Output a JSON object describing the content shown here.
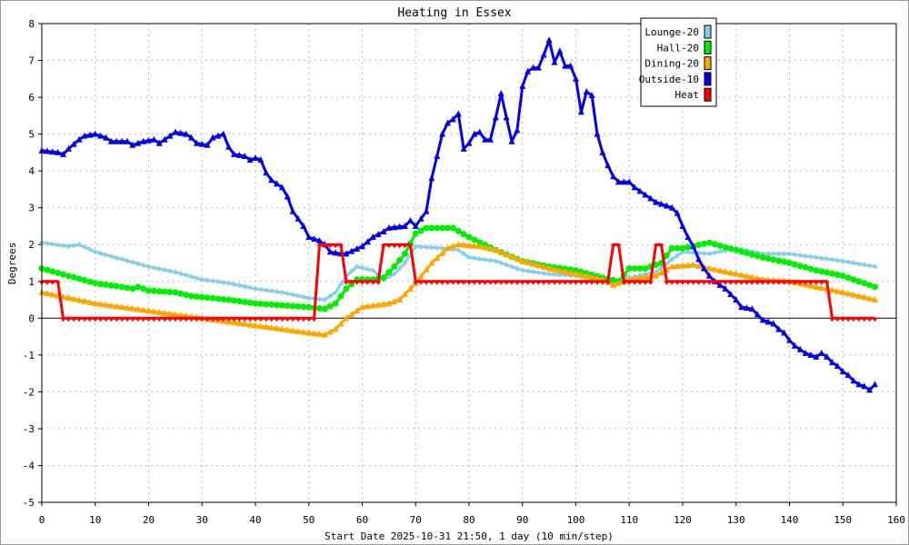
{
  "chart_data": {
    "type": "line",
    "title": "Heating in Essex",
    "xlabel": "Start Date 2025-10-31 21:50, 1 day (10 min/step)",
    "ylabel": "Degrees",
    "xlim": [
      0,
      160
    ],
    "ylim": [
      -5,
      8
    ],
    "xticks": [
      0,
      10,
      20,
      30,
      40,
      50,
      60,
      70,
      80,
      90,
      100,
      110,
      120,
      130,
      140,
      150,
      160
    ],
    "yticks": [
      -5,
      -4,
      -3,
      -2,
      -1,
      0,
      1,
      2,
      3,
      4,
      5,
      6,
      7,
      8
    ],
    "grid": true,
    "legend_position": "top-right",
    "series": [
      {
        "name": "Lounge-20",
        "color": "#87ceeb",
        "marker": "diamond",
        "x": [
          0,
          5,
          7,
          10,
          15,
          20,
          25,
          30,
          35,
          40,
          45,
          50,
          53,
          55,
          57,
          59,
          62,
          64,
          66,
          68,
          70,
          75,
          78,
          80,
          85,
          90,
          95,
          100,
          105,
          108,
          110,
          115,
          118,
          120,
          125,
          130,
          135,
          140,
          145,
          150,
          156
        ],
        "y": [
          2.05,
          1.95,
          2.0,
          1.8,
          1.6,
          1.4,
          1.25,
          1.05,
          0.95,
          0.8,
          0.7,
          0.55,
          0.5,
          0.7,
          1.15,
          1.4,
          1.3,
          1.05,
          1.2,
          1.5,
          1.95,
          1.9,
          1.85,
          1.65,
          1.55,
          1.3,
          1.2,
          1.15,
          1.05,
          1.0,
          1.1,
          1.25,
          1.6,
          1.8,
          1.75,
          1.9,
          1.75,
          1.75,
          1.65,
          1.55,
          1.4
        ]
      },
      {
        "name": "Hall-20",
        "color": "#00ee00",
        "marker": "circle",
        "x": [
          0,
          5,
          10,
          15,
          17,
          18,
          20,
          25,
          28,
          35,
          40,
          45,
          50,
          53,
          55,
          57,
          59,
          62,
          64,
          66,
          68,
          70,
          72,
          77,
          80,
          85,
          90,
          95,
          100,
          105,
          108,
          110,
          113,
          116,
          118,
          120,
          125,
          130,
          135,
          140,
          145,
          150,
          156
        ],
        "y": [
          1.35,
          1.15,
          0.95,
          0.85,
          0.8,
          0.85,
          0.75,
          0.7,
          0.6,
          0.5,
          0.4,
          0.35,
          0.3,
          0.25,
          0.4,
          0.8,
          1.05,
          1.05,
          1.1,
          1.4,
          1.75,
          2.3,
          2.45,
          2.45,
          2.2,
          1.85,
          1.55,
          1.4,
          1.3,
          1.1,
          1.0,
          1.35,
          1.35,
          1.5,
          1.9,
          1.9,
          2.05,
          1.85,
          1.65,
          1.5,
          1.3,
          1.15,
          0.85
        ]
      },
      {
        "name": "Dining-20",
        "color": "#ffa500",
        "marker": "triangle",
        "x": [
          0,
          5,
          10,
          15,
          20,
          25,
          30,
          35,
          40,
          45,
          50,
          53,
          55,
          57,
          60,
          65,
          67,
          70,
          73,
          76,
          78,
          82,
          85,
          90,
          95,
          100,
          105,
          107,
          110,
          115,
          118,
          122,
          125,
          130,
          135,
          140,
          145,
          150,
          156
        ],
        "y": [
          0.7,
          0.55,
          0.4,
          0.3,
          0.2,
          0.1,
          0.0,
          -0.1,
          -0.2,
          -0.3,
          -0.4,
          -0.45,
          -0.3,
          0.0,
          0.3,
          0.4,
          0.5,
          0.95,
          1.5,
          1.9,
          2.0,
          1.95,
          1.85,
          1.55,
          1.35,
          1.2,
          1.05,
          0.9,
          1.05,
          1.15,
          1.4,
          1.45,
          1.35,
          1.2,
          1.05,
          1.0,
          0.85,
          0.7,
          0.5
        ]
      },
      {
        "name": "Outside-10",
        "color": "#0000ee",
        "marker": "triangle",
        "x": [
          0,
          3,
          4,
          5,
          7,
          8,
          10,
          12,
          13,
          16,
          17,
          19,
          21,
          22,
          23,
          25,
          27,
          28,
          29,
          31,
          32,
          34,
          35,
          36,
          38,
          39,
          40,
          41,
          42,
          43,
          44,
          45,
          46,
          47,
          48,
          49,
          50,
          52,
          53,
          54,
          56,
          57,
          60,
          62,
          64,
          65,
          68,
          69,
          70,
          71,
          72,
          73,
          74,
          75,
          76,
          77,
          78,
          79,
          80,
          81,
          82,
          83,
          84,
          85,
          86,
          87,
          88,
          89,
          90,
          91,
          92,
          93,
          94,
          95,
          96,
          97,
          98,
          99,
          100,
          101,
          102,
          103,
          104,
          105,
          106,
          107,
          108,
          110,
          111,
          112,
          113,
          114,
          115,
          116,
          117,
          118,
          119,
          120,
          121,
          122,
          123,
          124,
          125,
          126,
          128,
          130,
          131,
          133,
          134,
          135,
          137,
          138,
          139,
          140,
          141,
          142,
          143,
          144,
          145,
          146,
          147,
          148,
          149,
          150,
          151,
          152,
          153,
          154,
          155,
          156
        ],
        "y": [
          4.55,
          4.5,
          4.45,
          4.6,
          4.85,
          4.95,
          5.0,
          4.9,
          4.8,
          4.8,
          4.7,
          4.8,
          4.85,
          4.75,
          4.85,
          5.05,
          5.0,
          4.9,
          4.75,
          4.7,
          4.9,
          5.0,
          4.65,
          4.45,
          4.4,
          4.3,
          4.35,
          4.3,
          3.95,
          3.75,
          3.65,
          3.55,
          3.3,
          2.9,
          2.7,
          2.5,
          2.2,
          2.1,
          2.0,
          1.8,
          1.75,
          1.75,
          1.95,
          2.2,
          2.35,
          2.45,
          2.5,
          2.65,
          2.5,
          2.7,
          2.9,
          3.8,
          4.4,
          5.0,
          5.3,
          5.4,
          5.55,
          4.6,
          4.75,
          5.0,
          5.05,
          4.85,
          4.85,
          5.45,
          6.1,
          5.45,
          4.8,
          5.1,
          6.3,
          6.7,
          6.8,
          6.8,
          7.15,
          7.55,
          6.95,
          7.25,
          6.85,
          6.85,
          6.5,
          5.6,
          6.15,
          6.05,
          5.0,
          4.5,
          4.15,
          3.85,
          3.7,
          3.7,
          3.55,
          3.45,
          3.35,
          3.25,
          3.15,
          3.1,
          3.05,
          3.0,
          2.85,
          2.5,
          2.2,
          1.95,
          1.6,
          1.35,
          1.15,
          1.0,
          0.8,
          0.5,
          0.3,
          0.25,
          0.1,
          -0.05,
          -0.15,
          -0.3,
          -0.4,
          -0.6,
          -0.75,
          -0.85,
          -0.95,
          -1.0,
          -1.05,
          -0.95,
          -1.05,
          -1.2,
          -1.3,
          -1.45,
          -1.55,
          -1.7,
          -1.8,
          -1.85,
          -1.95,
          -1.8
        ]
      },
      {
        "name": "Heat",
        "color": "#ff0000",
        "marker": "tri-down",
        "x": [
          0,
          3,
          4,
          51,
          52,
          56,
          57,
          63,
          64,
          69,
          70,
          106,
          107,
          108,
          109,
          114,
          115,
          116,
          117,
          147,
          148,
          156
        ],
        "y": [
          1,
          1,
          0,
          0,
          2,
          2,
          1,
          1,
          2,
          2,
          1,
          1,
          2,
          2,
          1,
          1,
          2,
          2,
          1,
          1,
          0,
          0
        ]
      }
    ]
  }
}
